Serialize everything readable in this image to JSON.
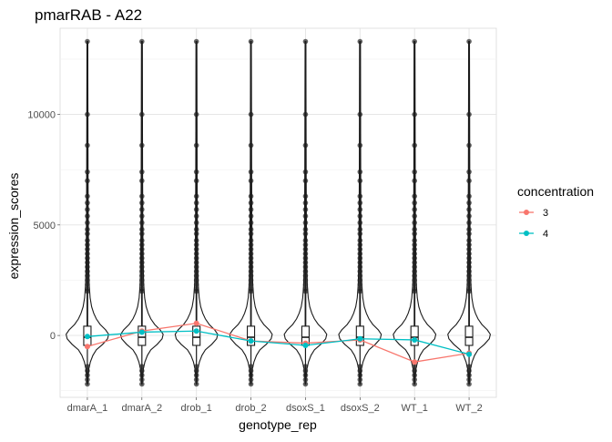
{
  "chart_data": {
    "type": "violin",
    "title": "pmarRAB - A22",
    "xlabel": "genotype_rep",
    "ylabel": "expression_scores",
    "categories": [
      "dmarA_1",
      "dmarA_2",
      "drob_1",
      "drob_2",
      "dsoxS_1",
      "dsoxS_2",
      "WT_1",
      "WT_2"
    ],
    "ylim": [
      -2800,
      13900
    ],
    "yticks": [
      0,
      5000,
      10000
    ],
    "ytick_labels": [
      "0",
      "5000",
      "10000"
    ],
    "grid": true,
    "legend": {
      "title": "concentration",
      "position": "right",
      "entries": [
        {
          "label": "3",
          "color": "#F8766D"
        },
        {
          "label": "4",
          "color": "#00BFC4"
        }
      ]
    },
    "distribution": {
      "min": -2200,
      "max": 13300,
      "box_q1": -450,
      "box_median": -80,
      "box_q3": 420,
      "outlier_points": [
        13300,
        10000,
        8600,
        7400,
        7000,
        6300,
        6000,
        5700,
        5400,
        5100,
        4800,
        4600,
        4300,
        4100,
        3900,
        3700,
        3500,
        3300,
        3100,
        2900,
        2700,
        2500,
        2300,
        2100,
        2000,
        -1400,
        -1600,
        -1800,
        -2000,
        -2200
      ]
    },
    "series": [
      {
        "name": "3",
        "color": "#F8766D",
        "values": [
          -500,
          200,
          550,
          -250,
          -350,
          -200,
          -1200,
          -800
        ]
      },
      {
        "name": "4",
        "color": "#00BFC4",
        "values": [
          -50,
          150,
          200,
          -250,
          -450,
          -150,
          -200,
          -850
        ]
      }
    ]
  }
}
